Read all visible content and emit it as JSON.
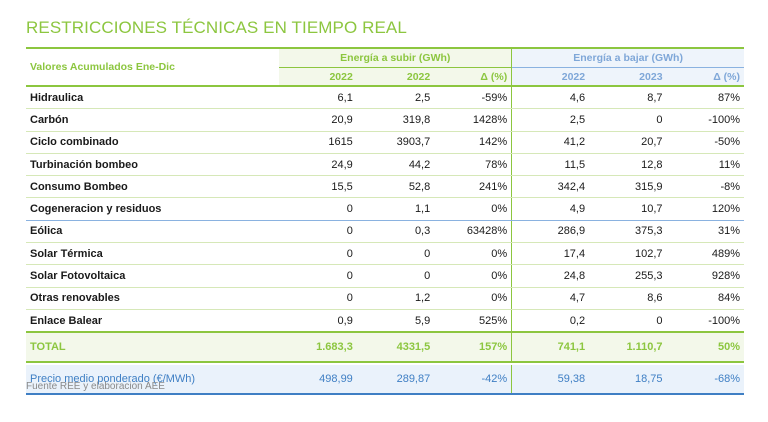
{
  "title": "RESTRICCIONES TÉCNICAS EN TIEMPO REAL",
  "source": "Fuente REE y elaboracion AEE",
  "header": {
    "row_label": "Valores Acumulados Ene-Dic",
    "group_up": "Energía a subir (GWh)",
    "group_down": "Energía a bajar (GWh)",
    "cols": [
      "2022",
      "2022",
      "Δ (%)",
      "2022",
      "2023",
      "Δ (%)"
    ]
  },
  "rows": [
    {
      "label": "Hidraulica",
      "values": [
        "6,1",
        "2,5",
        "-59%",
        "4,6",
        "8,7",
        "87%"
      ]
    },
    {
      "label": "Carbón",
      "values": [
        "20,9",
        "319,8",
        "1428%",
        "2,5",
        "0",
        "-100%"
      ]
    },
    {
      "label": "Ciclo combinado",
      "values": [
        "1615",
        "3903,7",
        "142%",
        "41,2",
        "20,7",
        "-50%"
      ]
    },
    {
      "label": "Turbinación bombeo",
      "values": [
        "24,9",
        "44,2",
        "78%",
        "11,5",
        "12,8",
        "11%"
      ]
    },
    {
      "label": "Consumo Bombeo",
      "values": [
        "15,5",
        "52,8",
        "241%",
        "342,4",
        "315,9",
        "-8%"
      ]
    },
    {
      "label": "Cogeneracion y residuos",
      "values": [
        "0",
        "1,1",
        "0%",
        "4,9",
        "10,7",
        "120%"
      ]
    },
    {
      "label": "Eólica",
      "values": [
        "0",
        "0,3",
        "63428%",
        "286,9",
        "375,3",
        "31%"
      ]
    },
    {
      "label": "Solar Térmica",
      "values": [
        "0",
        "0",
        "0%",
        "17,4",
        "102,7",
        "489%"
      ]
    },
    {
      "label": "Solar Fotovoltaica",
      "values": [
        "0",
        "0",
        "0%",
        "24,8",
        "255,3",
        "928%"
      ]
    },
    {
      "label": "Otras renovables",
      "values": [
        "0",
        "1,2",
        "0%",
        "4,7",
        "8,6",
        "84%"
      ]
    },
    {
      "label": "Enlace Balear",
      "values": [
        "0,9",
        "5,9",
        "525%",
        "0,2",
        "0",
        "-100%"
      ]
    }
  ],
  "total": {
    "label": "TOTAL",
    "values": [
      "1.683,3",
      "4331,5",
      "157%",
      "741,1",
      "1.110,7",
      "50%"
    ]
  },
  "price": {
    "label": "Precio medio ponderado (€/MWh)",
    "values": [
      "498,99",
      "289,87",
      "-42%",
      "59,38",
      "18,75",
      "-68%"
    ]
  }
}
